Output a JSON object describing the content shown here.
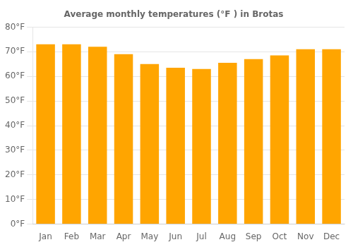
{
  "chart_data": {
    "type": "bar",
    "title": "Average monthly temperatures (°F ) in Brotas",
    "categories": [
      "Jan",
      "Feb",
      "Mar",
      "Apr",
      "May",
      "Jun",
      "Jul",
      "Aug",
      "Sep",
      "Oct",
      "Nov",
      "Dec"
    ],
    "values": [
      73,
      73,
      72,
      69,
      65,
      63.5,
      63,
      65.5,
      67,
      68.5,
      71,
      71
    ],
    "color": "#FFA500",
    "ylim": [
      0,
      80
    ],
    "yticks": [
      {
        "value": 0,
        "label": "0°F"
      },
      {
        "value": 10,
        "label": "10°F"
      },
      {
        "value": 20,
        "label": "20°F"
      },
      {
        "value": 30,
        "label": "30°F"
      },
      {
        "value": 40,
        "label": "40°F"
      },
      {
        "value": 50,
        "label": "50°F"
      },
      {
        "value": 60,
        "label": "60°F"
      },
      {
        "value": 70,
        "label": "70°F"
      },
      {
        "value": 80,
        "label": "80°F"
      }
    ],
    "grid": true
  }
}
